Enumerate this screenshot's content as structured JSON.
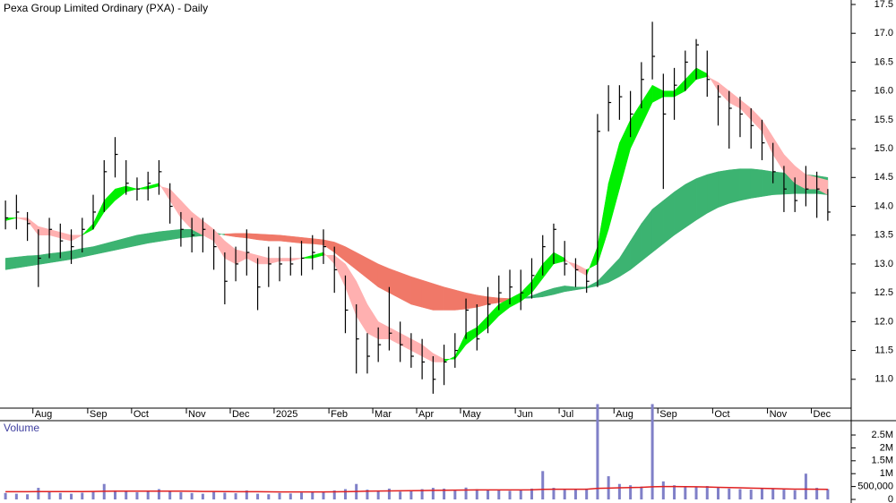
{
  "chart_data": [
    {
      "type": "hlc",
      "title": "Pexa Group Limited Ordinary (PXA) - Daily",
      "categories": [
        null,
        null,
        null,
        "Aug",
        null,
        null,
        null,
        null,
        "Sep",
        null,
        null,
        null,
        "Oct",
        null,
        null,
        null,
        null,
        "Nov",
        null,
        null,
        null,
        "Dec",
        null,
        null,
        null,
        "2025",
        null,
        null,
        null,
        null,
        "Feb",
        null,
        null,
        null,
        "Mar",
        null,
        null,
        null,
        "Apr",
        null,
        null,
        null,
        "May",
        null,
        null,
        null,
        null,
        "Jun",
        null,
        null,
        null,
        "Jul",
        null,
        null,
        null,
        null,
        "Aug",
        null,
        null,
        null,
        "Sep",
        null,
        null,
        null,
        null,
        "Oct",
        null,
        null,
        null,
        null,
        "Nov",
        null,
        null,
        null,
        "Dec",
        null
      ],
      "high": [
        14.1,
        14.2,
        13.9,
        13.6,
        13.8,
        13.7,
        13.6,
        13.8,
        14.2,
        14.8,
        15.2,
        14.8,
        14.5,
        14.6,
        14.8,
        14.4,
        13.9,
        13.8,
        13.8,
        13.6,
        13.2,
        13.3,
        13.6,
        13.1,
        13.3,
        13.3,
        13.3,
        13.4,
        13.5,
        13.6,
        13.3,
        12.8,
        12.3,
        11.8,
        11.9,
        12.6,
        12.0,
        11.8,
        11.7,
        11.4,
        11.6,
        11.8,
        12.4,
        12.3,
        12.6,
        12.8,
        12.9,
        12.9,
        13.1,
        13.5,
        13.7,
        13.4,
        13.1,
        12.9,
        15.6,
        16.1,
        16.1,
        16.0,
        16.5,
        17.2,
        16.3,
        16.4,
        16.7,
        16.9,
        16.7,
        16.1,
        16.0,
        15.9,
        15.7,
        15.5,
        15.1,
        14.7,
        14.5,
        14.7,
        14.6,
        14.3
      ],
      "low": [
        13.6,
        13.6,
        13.4,
        12.6,
        13.1,
        13.1,
        13.0,
        13.2,
        13.6,
        13.9,
        14.5,
        14.2,
        14.1,
        14.1,
        14.2,
        13.7,
        13.3,
        13.2,
        13.2,
        12.9,
        12.3,
        12.7,
        12.8,
        12.2,
        12.6,
        12.7,
        12.8,
        12.8,
        12.9,
        13.0,
        12.5,
        11.8,
        11.1,
        11.1,
        11.3,
        11.5,
        11.3,
        11.2,
        11.0,
        10.75,
        10.9,
        11.2,
        11.7,
        11.5,
        11.8,
        12.2,
        12.3,
        12.2,
        12.4,
        12.8,
        13.0,
        12.8,
        12.6,
        12.5,
        12.6,
        15.3,
        15.5,
        15.2,
        15.7,
        16.2,
        14.3,
        15.5,
        16.0,
        16.2,
        15.9,
        15.4,
        15.0,
        15.2,
        15.0,
        14.8,
        14.4,
        13.9,
        13.9,
        14.0,
        13.8,
        13.75
      ],
      "close": [
        13.8,
        13.9,
        13.7,
        13.1,
        13.6,
        13.4,
        13.3,
        13.6,
        13.9,
        14.6,
        14.9,
        14.4,
        14.3,
        14.4,
        14.6,
        14.0,
        13.6,
        13.5,
        13.6,
        13.3,
        12.7,
        13.0,
        13.2,
        12.6,
        13.0,
        13.0,
        13.0,
        13.1,
        13.2,
        13.3,
        12.9,
        12.2,
        11.7,
        11.4,
        11.6,
        11.8,
        11.6,
        11.4,
        11.3,
        11.0,
        11.3,
        11.5,
        12.2,
        11.7,
        12.3,
        12.5,
        12.6,
        12.5,
        12.8,
        13.3,
        13.6,
        13.0,
        12.9,
        12.7,
        15.3,
        15.8,
        15.9,
        15.6,
        16.2,
        16.6,
        15.6,
        16.1,
        16.5,
        16.8,
        16.2,
        15.9,
        15.7,
        15.6,
        15.4,
        15.1,
        14.6,
        14.3,
        14.1,
        14.3,
        14.3,
        13.9
      ],
      "color": "#000000",
      "ribbons": [
        {
          "fast": [
            13.1,
            13.12,
            13.14,
            13.15,
            13.18,
            13.2,
            13.23,
            13.27,
            13.3,
            13.35,
            13.4,
            13.45,
            13.5,
            13.53,
            13.56,
            13.58,
            13.6,
            13.6,
            13.58,
            13.55,
            13.5,
            13.47,
            13.45,
            13.42,
            13.4,
            13.4,
            13.38,
            13.36,
            13.35,
            13.33,
            13.2,
            13.05,
            12.9,
            12.75,
            12.6,
            12.5,
            12.4,
            12.3,
            12.25,
            12.2,
            12.2,
            12.2,
            12.22,
            12.25,
            12.3,
            12.33,
            12.36,
            12.4,
            12.45,
            12.52,
            12.58,
            12.62,
            12.6,
            12.6,
            12.7,
            12.9,
            13.1,
            13.4,
            13.7,
            13.95,
            14.1,
            14.25,
            14.38,
            14.48,
            14.55,
            14.6,
            14.63,
            14.65,
            14.65,
            14.63,
            14.6,
            14.58,
            14.56,
            14.55,
            14.53,
            14.5
          ],
          "slow": [
            12.9,
            12.93,
            12.96,
            12.99,
            13.02,
            13.05,
            13.08,
            13.12,
            13.16,
            13.2,
            13.24,
            13.28,
            13.32,
            13.36,
            13.39,
            13.42,
            13.45,
            13.47,
            13.49,
            13.5,
            13.52,
            13.53,
            13.53,
            13.52,
            13.51,
            13.5,
            13.48,
            13.46,
            13.44,
            13.42,
            13.38,
            13.3,
            13.2,
            13.1,
            13.0,
            12.92,
            12.85,
            12.78,
            12.72,
            12.66,
            12.6,
            12.55,
            12.5,
            12.46,
            12.43,
            12.41,
            12.4,
            12.4,
            12.41,
            12.43,
            12.47,
            12.52,
            12.55,
            12.58,
            12.62,
            12.68,
            12.78,
            12.9,
            13.05,
            13.2,
            13.35,
            13.5,
            13.63,
            13.76,
            13.88,
            13.98,
            14.05,
            14.1,
            14.14,
            14.17,
            14.2,
            14.21,
            14.22,
            14.22,
            14.22,
            14.2
          ],
          "up_color": "#3cb371",
          "down_color": "#f07868"
        },
        {
          "fast": [
            13.8,
            13.8,
            13.75,
            13.5,
            13.5,
            13.45,
            13.4,
            13.5,
            13.7,
            14.1,
            14.3,
            14.35,
            14.3,
            14.35,
            14.4,
            14.1,
            13.8,
            13.6,
            13.5,
            13.4,
            13.1,
            13.0,
            13.1,
            13.0,
            13.0,
            13.05,
            13.05,
            13.1,
            13.15,
            13.2,
            13.0,
            12.6,
            12.1,
            11.8,
            11.7,
            11.7,
            11.6,
            11.5,
            11.4,
            11.3,
            11.3,
            11.4,
            11.8,
            11.9,
            12.1,
            12.3,
            12.4,
            12.5,
            12.7,
            13.0,
            13.2,
            13.1,
            12.9,
            12.8,
            13.3,
            14.4,
            15.1,
            15.5,
            15.8,
            16.1,
            16.0,
            16.0,
            16.2,
            16.4,
            16.3,
            16.0,
            15.8,
            15.7,
            15.5,
            15.3,
            14.9,
            14.6,
            14.4,
            14.3,
            14.3,
            14.2
          ],
          "slow": [
            13.75,
            13.8,
            13.8,
            13.65,
            13.6,
            13.55,
            13.5,
            13.5,
            13.6,
            13.9,
            14.1,
            14.25,
            14.3,
            14.3,
            14.35,
            14.3,
            14.1,
            13.9,
            13.75,
            13.6,
            13.4,
            13.25,
            13.2,
            13.15,
            13.1,
            13.1,
            13.1,
            13.1,
            13.1,
            13.15,
            13.15,
            13.0,
            12.7,
            12.3,
            12.0,
            11.9,
            11.8,
            11.7,
            11.6,
            11.45,
            11.35,
            11.35,
            11.6,
            11.75,
            11.9,
            12.1,
            12.25,
            12.35,
            12.5,
            12.75,
            13.0,
            13.05,
            13.0,
            12.9,
            13.0,
            13.6,
            14.3,
            15.0,
            15.4,
            15.8,
            15.9,
            15.9,
            16.0,
            16.2,
            16.25,
            16.15,
            16.0,
            15.85,
            15.7,
            15.5,
            15.2,
            14.9,
            14.7,
            14.55,
            14.5,
            14.45
          ],
          "up_color": "#00f000",
          "down_color": "#ffb0b0"
        }
      ],
      "ylim": [
        10.5,
        17.5
      ],
      "yticks": [
        {
          "value": 11,
          "label": "11.0"
        },
        {
          "value": 11.5,
          "label": "11.5"
        },
        {
          "value": 12,
          "label": "12.0"
        },
        {
          "value": 12.5,
          "label": "12.5"
        },
        {
          "value": 13,
          "label": "13.0"
        },
        {
          "value": 13.5,
          "label": "13.5"
        },
        {
          "value": 14,
          "label": "14.0"
        },
        {
          "value": 14.5,
          "label": "14.5"
        },
        {
          "value": 15,
          "label": "15.0"
        },
        {
          "value": 15.5,
          "label": "15.5"
        },
        {
          "value": 16,
          "label": "16.0"
        },
        {
          "value": 16.5,
          "label": "16.5"
        },
        {
          "value": 17,
          "label": "17.0"
        },
        {
          "value": 17.5,
          "label": "17.5"
        }
      ]
    },
    {
      "type": "bar",
      "title": "Volume",
      "values": [
        250000,
        220000,
        200000,
        450000,
        300000,
        250000,
        220000,
        260000,
        300000,
        600000,
        350000,
        300000,
        280000,
        320000,
        400000,
        300000,
        280000,
        250000,
        220000,
        300000,
        260000,
        240000,
        350000,
        220000,
        200000,
        250000,
        230000,
        260000,
        280000,
        300000,
        350000,
        400000,
        600000,
        380000,
        330000,
        420000,
        300000,
        350000,
        400000,
        450000,
        420000,
        380000,
        460000,
        400000,
        380000,
        350000,
        330000,
        360000,
        420000,
        1100000,
        450000,
        380000,
        400000,
        420000,
        3700000,
        900000,
        600000,
        550000,
        500000,
        3700000,
        700000,
        550000,
        500000,
        480000,
        520000,
        450000,
        420000,
        400000,
        380000,
        420000,
        400000,
        380000,
        360000,
        1000000,
        450000,
        400000
      ],
      "average": [
        300000,
        300000,
        300000,
        305000,
        305000,
        305000,
        305000,
        305000,
        310000,
        315000,
        320000,
        320000,
        320000,
        320000,
        320000,
        320000,
        320000,
        315000,
        310000,
        310000,
        305000,
        300000,
        300000,
        300000,
        295000,
        290000,
        290000,
        290000,
        290000,
        290000,
        295000,
        300000,
        310000,
        320000,
        325000,
        330000,
        335000,
        340000,
        345000,
        350000,
        355000,
        360000,
        365000,
        370000,
        370000,
        370000,
        370000,
        370000,
        375000,
        390000,
        395000,
        395000,
        395000,
        395000,
        430000,
        440000,
        450000,
        460000,
        470000,
        490000,
        500000,
        500000,
        495000,
        490000,
        480000,
        470000,
        460000,
        450000,
        440000,
        430000,
        420000,
        410000,
        400000,
        400000,
        395000,
        390000
      ],
      "color": "#8080c8",
      "average_color": "#e02020",
      "ylim": [
        0,
        3800000
      ],
      "yticks": [
        0,
        {
          "value": 500000,
          "label": "500,000"
        },
        {
          "value": 1000000,
          "label": "1M"
        },
        {
          "value": 1500000,
          "label": "1.5M"
        },
        {
          "value": 2000000,
          "label": "2M"
        },
        {
          "value": 2500000,
          "label": "2.5M"
        }
      ]
    }
  ]
}
